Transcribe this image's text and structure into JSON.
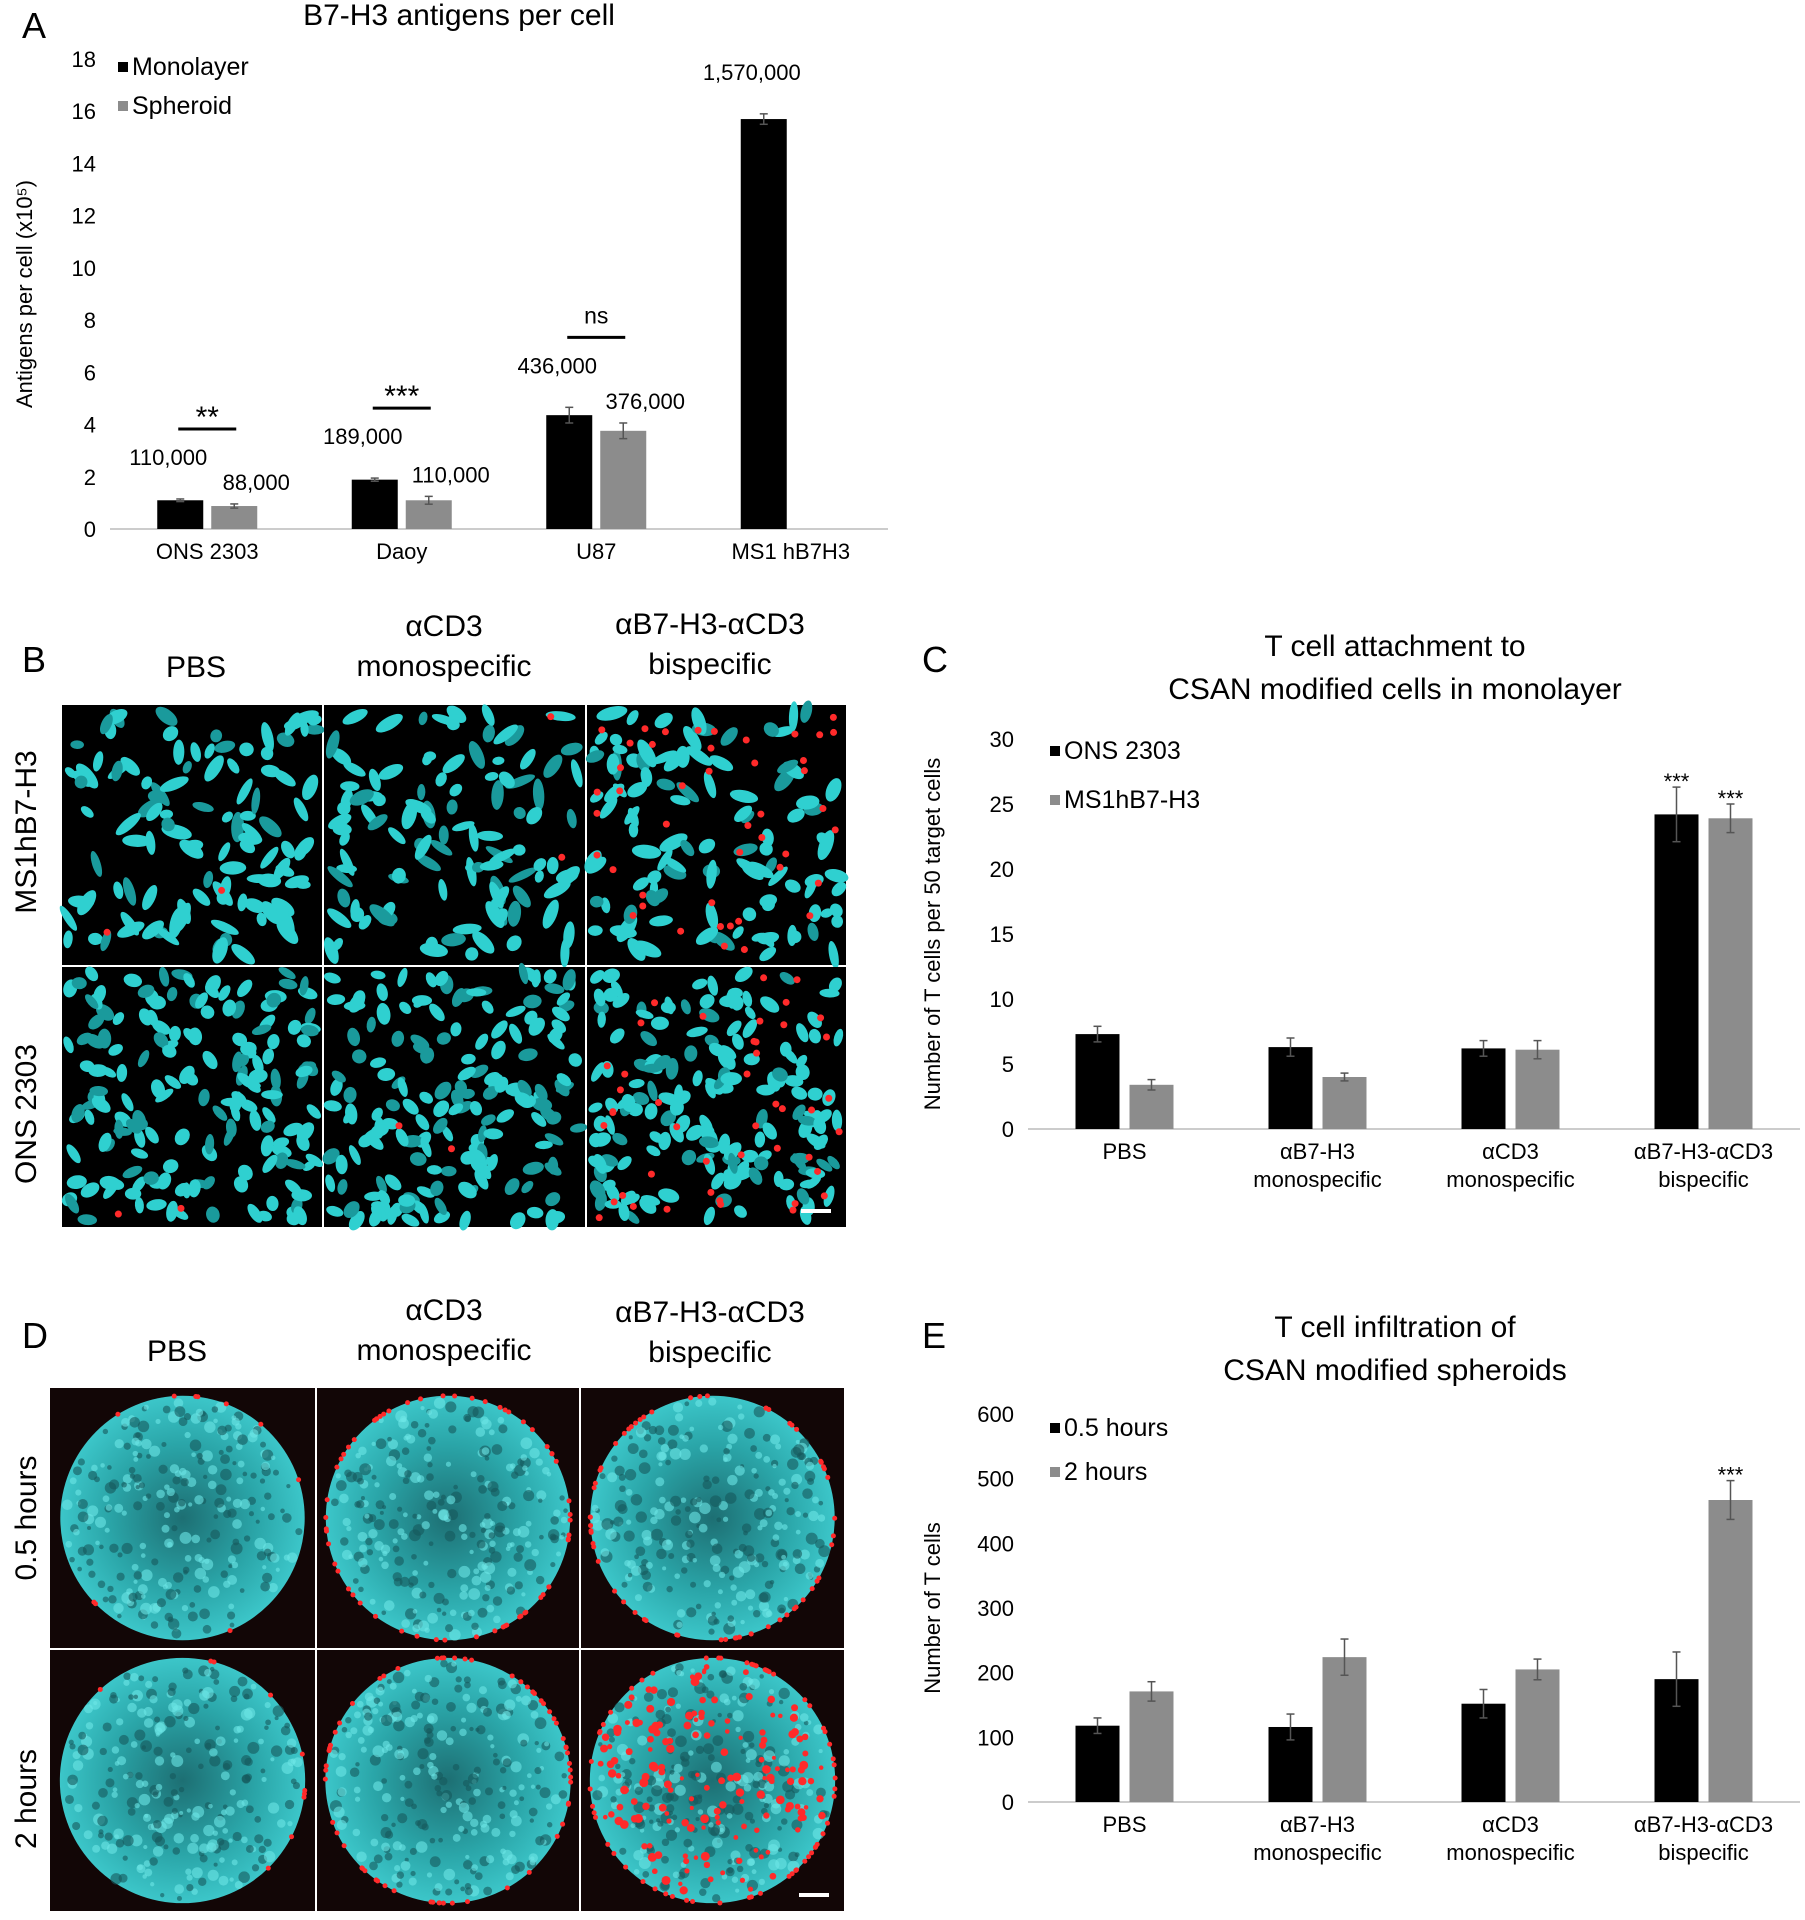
{
  "panel_letters": [
    "A",
    "B",
    "C",
    "D",
    "E"
  ],
  "image_panels": [
    {
      "columns": [
        [
          "PBS"
        ],
        [
          "αCD3",
          "monospecific"
        ],
        [
          "αB7-H3-αCD3",
          "bispecific"
        ]
      ],
      "rows": [
        "MS1hB7-H3",
        "ONS 2303"
      ]
    },
    {
      "columns": [
        [
          "PBS"
        ],
        [
          "αCD3",
          "monospecific"
        ],
        [
          "αB7-H3-αCD3",
          "bispecific"
        ]
      ],
      "rows": [
        "0.5 hours",
        "2 hours"
      ]
    }
  ],
  "chart_data": [
    {
      "type": "bar",
      "title": "B7-H3 antigens per cell",
      "ylabel": "Antigens per cell (x10⁵)",
      "categories": [
        [
          "ONS 2303"
        ],
        [
          "Daoy"
        ],
        [
          "U87"
        ],
        [
          "MS1 hB7H3"
        ]
      ],
      "series": [
        {
          "name": "Monolayer",
          "color": "#000000",
          "values": [
            1.1,
            1.89,
            4.36,
            15.7
          ],
          "errors": [
            0.05,
            0.06,
            0.3,
            0.2
          ],
          "value_labels": [
            "110,000",
            "189,000",
            "436,000",
            "1,570,000"
          ]
        },
        {
          "name": "Spheroid",
          "color": "#8c8c8c",
          "values": [
            0.88,
            1.1,
            3.76,
            null
          ],
          "errors": [
            0.08,
            0.15,
            0.3,
            null
          ],
          "value_labels": [
            "88,000",
            "110,000",
            "376,000",
            null
          ]
        }
      ],
      "annotations": [
        "**",
        "***",
        "ns",
        null
      ],
      "ylim": [
        0,
        18
      ],
      "yticks": [
        0,
        2,
        4,
        6,
        8,
        10,
        12,
        14,
        16,
        18
      ],
      "grid": false,
      "legend": "upper-left"
    },
    {
      "type": "bar",
      "title": [
        "T cell attachment to",
        "CSAN modified cells in monolayer"
      ],
      "ylabel": "Number of T cells per 50 target cells",
      "categories": [
        [
          "PBS"
        ],
        [
          "αB7-H3",
          "monospecific"
        ],
        [
          "αCD3",
          "monospecific"
        ],
        [
          "αB7-H3-αCD3",
          "bispecific"
        ]
      ],
      "series": [
        {
          "name": "ONS 2303",
          "color": "#000000",
          "values": [
            7.3,
            6.3,
            6.2,
            24.2
          ],
          "errors": [
            0.6,
            0.7,
            0.6,
            2.1
          ],
          "annotations": [
            null,
            null,
            null,
            "***"
          ]
        },
        {
          "name": "MS1hB7-H3",
          "color": "#8c8c8c",
          "values": [
            3.4,
            4.0,
            6.1,
            23.9
          ],
          "errors": [
            0.4,
            0.3,
            0.7,
            1.1
          ],
          "annotations": [
            null,
            null,
            null,
            "***"
          ]
        }
      ],
      "ylim": [
        0,
        30
      ],
      "yticks": [
        0,
        5,
        10,
        15,
        20,
        25,
        30
      ],
      "grid": false,
      "legend": "upper-left"
    },
    {
      "type": "bar",
      "title": [
        "T cell infiltration of",
        "CSAN modified spheroids"
      ],
      "ylabel": "Number of T cells",
      "categories": [
        [
          "PBS"
        ],
        [
          "αB7-H3",
          "monospecific"
        ],
        [
          "αCD3",
          "monospecific"
        ],
        [
          "αB7-H3-αCD3",
          "bispecific"
        ]
      ],
      "series": [
        {
          "name": "0.5 hours",
          "color": "#000000",
          "values": [
            118,
            116,
            152,
            190
          ],
          "errors": [
            12,
            20,
            22,
            42
          ],
          "annotations": [
            null,
            null,
            null,
            null
          ]
        },
        {
          "name": "2 hours",
          "color": "#8c8c8c",
          "values": [
            171,
            224,
            205,
            467
          ],
          "errors": [
            15,
            28,
            16,
            30
          ],
          "annotations": [
            null,
            null,
            null,
            "***"
          ]
        }
      ],
      "ylim": [
        0,
        600
      ],
      "yticks": [
        0,
        100,
        200,
        300,
        400,
        500,
        600
      ],
      "grid": false,
      "legend": "upper-left"
    }
  ]
}
